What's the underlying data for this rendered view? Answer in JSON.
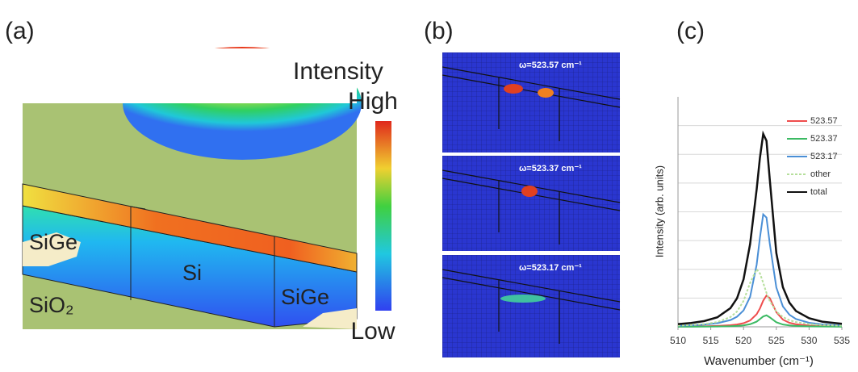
{
  "panel_labels": [
    "(a)",
    "(b)",
    "(c)"
  ],
  "panel_a": {
    "colorbar_title": "Intensity",
    "colorbar_high": "High",
    "colorbar_low": "Low",
    "regions": [
      "SiGe",
      "Si",
      "SiGe",
      "SiO₂"
    ]
  },
  "panel_b": {
    "insets": [
      "ω=523.57 cm⁻¹",
      "ω=523.37 cm⁻¹",
      "ω=523.17 cm⁻¹"
    ]
  },
  "chart_data": {
    "type": "line",
    "xlabel": "Wavenumber (cm⁻¹)",
    "ylabel": "Intensity (arb. units)",
    "x": [
      510,
      512,
      514,
      516,
      518,
      519,
      520,
      521,
      522,
      522.5,
      523,
      523.5,
      524,
      525,
      526,
      527,
      528,
      530,
      532,
      535
    ],
    "series": [
      {
        "name": "523.57",
        "color": "#ef4d4d",
        "values": [
          0.01,
          0.013,
          0.019,
          0.03,
          0.055,
          0.08,
          0.126,
          0.22,
          0.44,
          0.64,
          0.91,
          1.09,
          1.0,
          0.51,
          0.25,
          0.14,
          0.087,
          0.044,
          0.025,
          0.014
        ]
      },
      {
        "name": "523.37",
        "color": "#3cba63",
        "values": [
          0.004,
          0.005,
          0.007,
          0.011,
          0.02,
          0.03,
          0.05,
          0.09,
          0.18,
          0.27,
          0.36,
          0.4,
          0.33,
          0.16,
          0.08,
          0.05,
          0.03,
          0.015,
          0.009,
          0.005
        ]
      },
      {
        "name": "523.17",
        "color": "#4a8fd6",
        "values": [
          0.038,
          0.053,
          0.078,
          0.126,
          0.235,
          0.35,
          0.57,
          1.04,
          2.16,
          3.1,
          3.91,
          3.8,
          2.9,
          1.37,
          0.71,
          0.42,
          0.27,
          0.14,
          0.085,
          0.048
        ]
      },
      {
        "name": "other",
        "color": "#b6df9c",
        "dashed": true,
        "values": [
          0.044,
          0.063,
          0.096,
          0.165,
          0.34,
          0.53,
          0.9,
          1.53,
          2.0,
          1.86,
          1.53,
          1.18,
          0.9,
          0.53,
          0.34,
          0.23,
          0.165,
          0.096,
          0.063,
          0.038
        ]
      },
      {
        "name": "total",
        "color": "#111111",
        "values": [
          0.096,
          0.134,
          0.2,
          0.33,
          0.65,
          0.99,
          1.65,
          2.88,
          4.78,
          5.88,
          6.71,
          6.47,
          5.13,
          2.57,
          1.38,
          0.84,
          0.55,
          0.3,
          0.18,
          0.105
        ]
      }
    ],
    "xlim": [
      510,
      535
    ],
    "xticks": [
      510,
      515,
      520,
      525,
      530,
      535
    ],
    "ylim": [
      0,
      8
    ],
    "yticks": [
      1,
      2,
      3,
      4,
      5,
      6,
      7
    ],
    "grid": true
  }
}
